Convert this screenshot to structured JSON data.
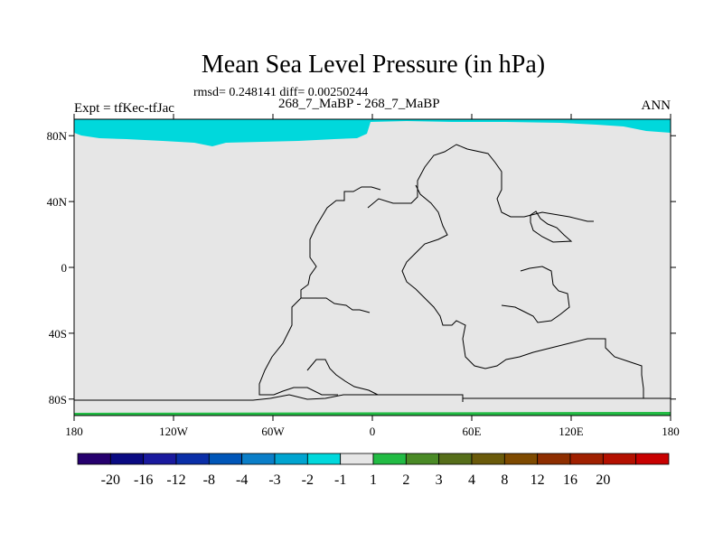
{
  "chart_data": {
    "type": "heatmap",
    "title": "Mean Sea Level Pressure (in hPa)",
    "stats_text": "rmsd= 0.248141 diff= 0.00250244",
    "subtitle": "268_7_MaBP - 268_7_MaBP",
    "left_label": "Expt = tfKec-tfJac",
    "right_label": "ANN",
    "x_ticks": [
      "180",
      "120W",
      "60W",
      "0",
      "60E",
      "120E",
      "180"
    ],
    "y_ticks": [
      "80N",
      "40N",
      "0",
      "40S",
      "80S"
    ],
    "xlim": [
      -180,
      180
    ],
    "ylim": [
      -90,
      90
    ],
    "map_background_color": "#e6e6e6",
    "field_regions": [
      {
        "name": "-2 to -1 band",
        "color": "#00d8dc"
      },
      {
        "name": "1 to 2 band",
        "color": "#22bb44"
      }
    ],
    "colorbar": {
      "colors": [
        "#26006e",
        "#0a0a82",
        "#1a1a9e",
        "#0a2fa8",
        "#0056b8",
        "#0a7ec8",
        "#00a4d0",
        "#00d8dc",
        "#e6e6e6",
        "#22bb44",
        "#4a8a26",
        "#566e1a",
        "#6a5a0a",
        "#7e4a00",
        "#8e2e00",
        "#a02000",
        "#b41000",
        "#c80000"
      ],
      "labels": [
        "-20",
        "-16",
        "-12",
        "-8",
        "-4",
        "-3",
        "-2",
        "-1",
        "1",
        "2",
        "3",
        "4",
        "8",
        "12",
        "16",
        "20"
      ]
    }
  }
}
